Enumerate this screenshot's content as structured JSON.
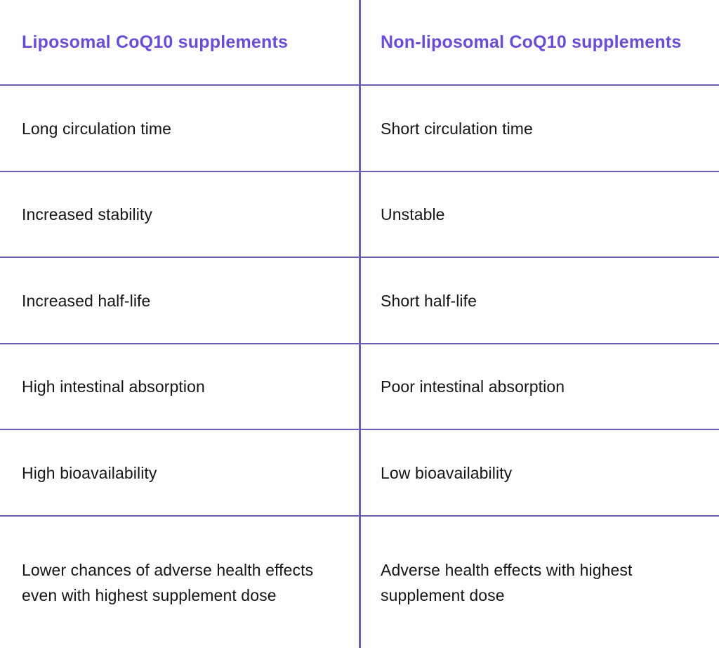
{
  "accent_color": "#6a4cd6",
  "grid_color": "#6d5db4",
  "text_color": "#161518",
  "background_color": "#fdfdfd",
  "table": {
    "headers": {
      "left": "Liposomal CoQ10 supplements",
      "right": "Non-liposomal CoQ10 supplements"
    },
    "rows": [
      {
        "left": "Long circulation time",
        "right": "Short circulation time"
      },
      {
        "left": "Increased stability",
        "right": "Unstable"
      },
      {
        "left": "Increased half-life",
        "right": "Short half-life"
      },
      {
        "left": "High intestinal absorption",
        "right": "Poor intestinal absorption"
      },
      {
        "left": "High bioavailability",
        "right": "Low bioavailability"
      },
      {
        "left": "Lower chances of adverse health effects even with highest supplement dose",
        "right": "Adverse health effects with highest supplement dose"
      }
    ]
  },
  "chart_data": {
    "type": "table",
    "title": "",
    "columns": [
      "Liposomal CoQ10 supplements",
      "Non-liposomal CoQ10 supplements"
    ],
    "rows": [
      [
        "Long circulation time",
        "Short circulation time"
      ],
      [
        "Increased stability",
        "Unstable"
      ],
      [
        "Increased half-life",
        "Short half-life"
      ],
      [
        "High intestinal absorption",
        "Poor intestinal absorption"
      ],
      [
        "High bioavailability",
        "Low bioavailability"
      ],
      [
        "Lower chances of adverse health effects even with highest supplement dose",
        "Adverse health effects with highest supplement dose"
      ]
    ],
    "layout_hints": {
      "header_color": "#6a4cd6",
      "divider_color": "#6d5db4",
      "grid": "horizontal lines between rows, single vertical divider between columns",
      "outer_border": "none"
    }
  }
}
